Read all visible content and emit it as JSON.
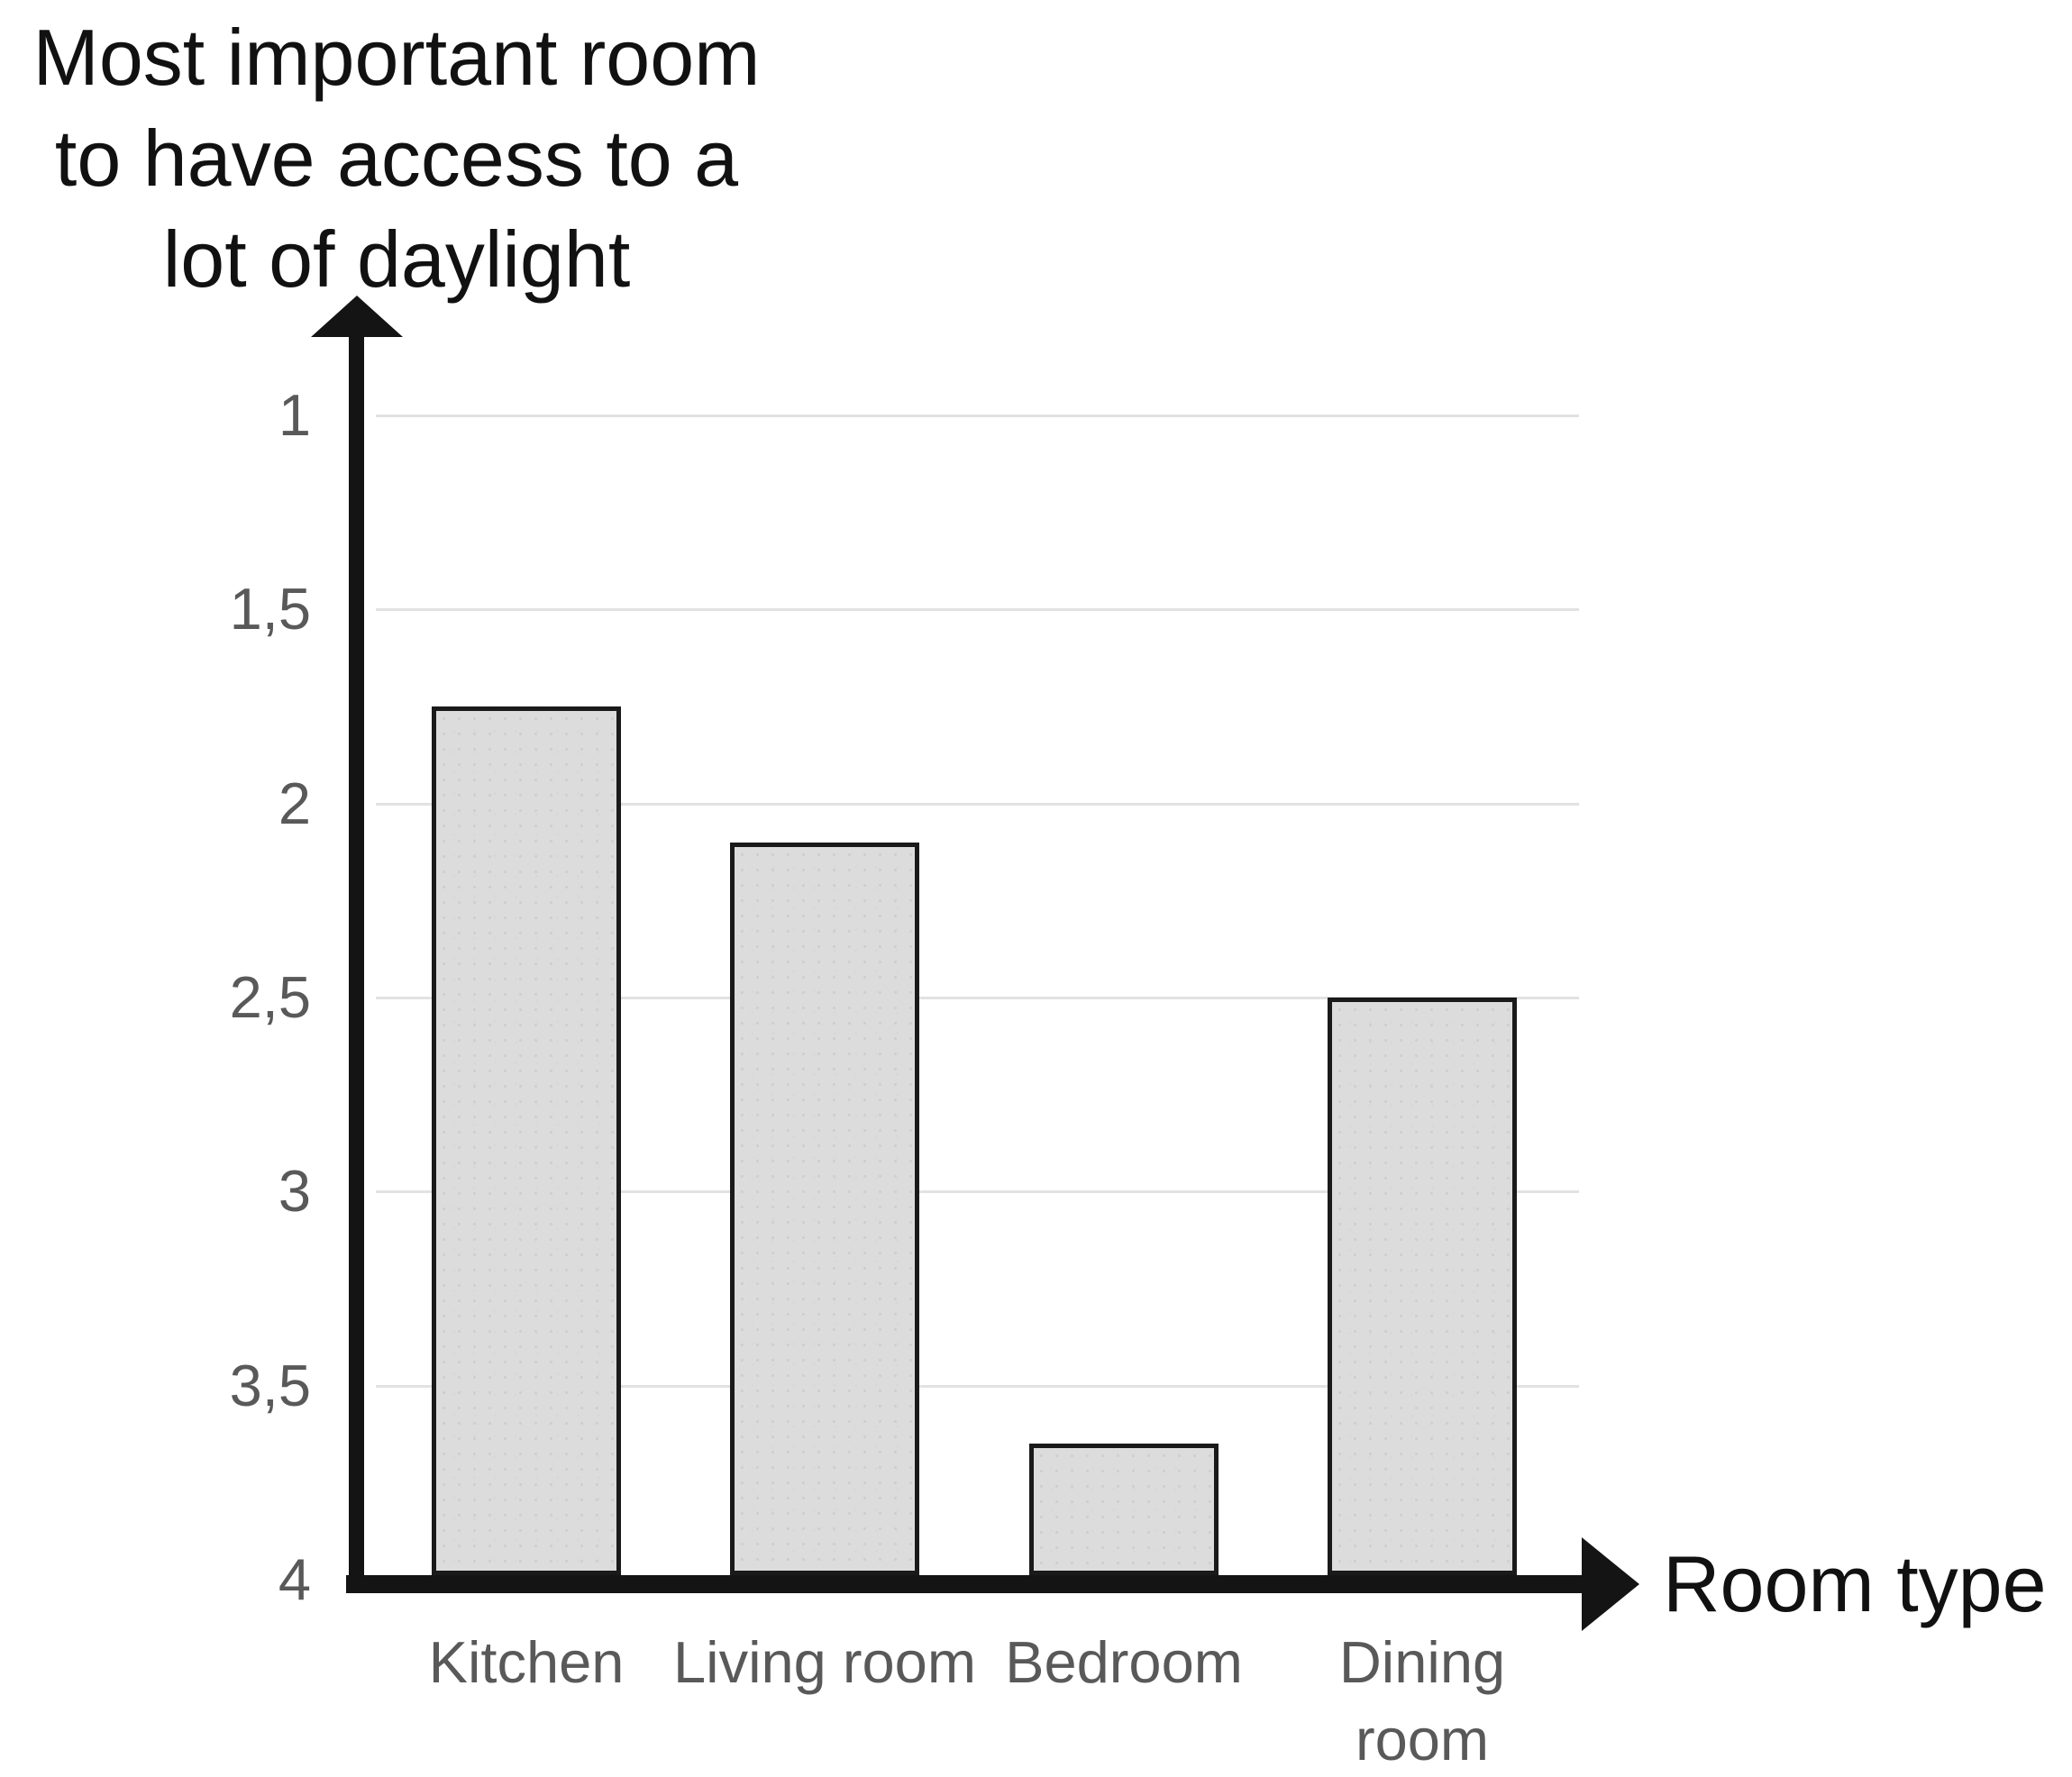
{
  "chart_data": {
    "type": "bar",
    "title": "Most important room to have access to a lot of daylight",
    "title_lines": [
      "Most important room",
      "to have access to a",
      "lot of daylight"
    ],
    "xlabel": "Room type",
    "ylabel": "",
    "categories": [
      "Kitchen",
      "Living room",
      "Bedroom",
      "Dining room"
    ],
    "category_label_lines": [
      [
        "Kitchen"
      ],
      [
        "Living room"
      ],
      [
        "Bedroom"
      ],
      [
        "Dining",
        "room"
      ]
    ],
    "values": [
      1.75,
      2.1,
      3.65,
      2.5
    ],
    "y_axis": {
      "min": 1,
      "max": 4,
      "tick_step": 0.5,
      "inverted": true,
      "decimal_separator": ",",
      "ticks": [
        {
          "label": "1",
          "value": 1
        },
        {
          "label": "1,5",
          "value": 1.5
        },
        {
          "label": "2",
          "value": 2
        },
        {
          "label": "2,5",
          "value": 2.5
        },
        {
          "label": "3",
          "value": 3
        },
        {
          "label": "3,5",
          "value": 3.5
        },
        {
          "label": "4",
          "value": 4
        }
      ]
    },
    "grid": true,
    "legend": null,
    "colors": {
      "background": "#ffffff",
      "bar_fill": "#dcdcdc",
      "bar_border": "#1a1a1a",
      "axis": "#141414",
      "gridline": "#e2e2e2",
      "tick_label": "#595959",
      "category_label": "#595959",
      "title": "#111111",
      "axis_title": "#111111"
    }
  }
}
